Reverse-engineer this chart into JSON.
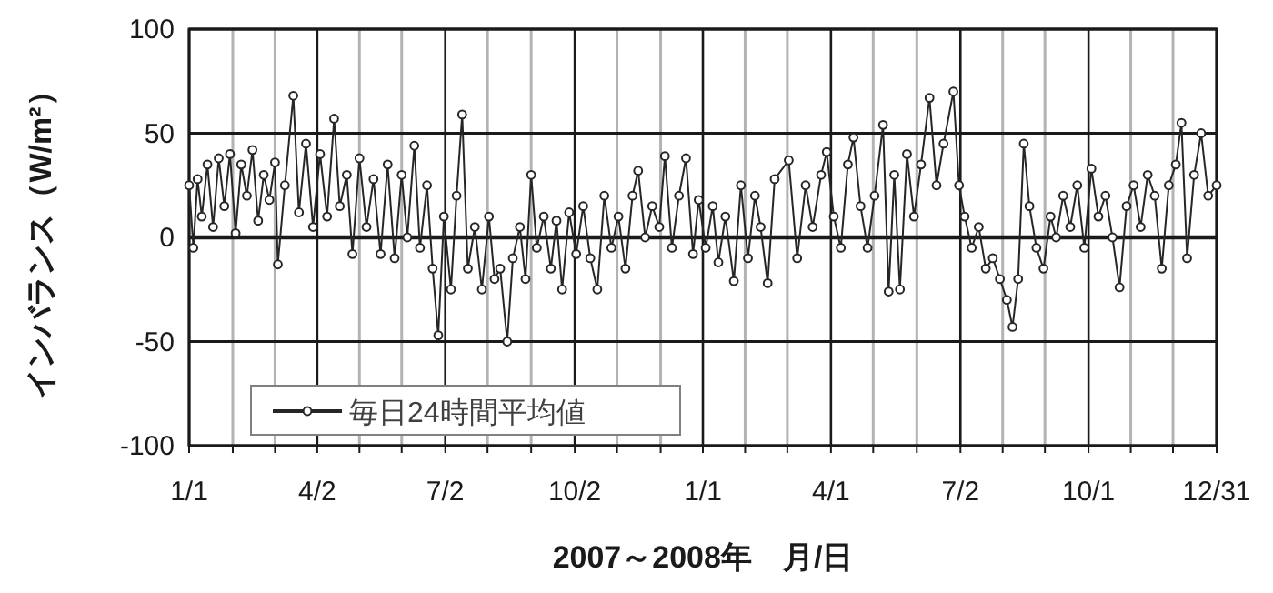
{
  "chart_data": {
    "type": "line",
    "xlabel": "2007～2008年　月/日",
    "ylabel": "インバランス（W/m²）",
    "xlim": [
      "2007-01-01",
      "2008-12-31"
    ],
    "ylim": [
      -100,
      100
    ],
    "yticks": [
      -100,
      -50,
      0,
      50,
      100
    ],
    "xticks": [
      {
        "value": "2007-01-01",
        "label": "1/1"
      },
      {
        "value": "2007-02-01",
        "label": null
      },
      {
        "value": "2007-03-03",
        "label": null
      },
      {
        "value": "2007-04-02",
        "label": "4/2"
      },
      {
        "value": "2007-05-02",
        "label": null
      },
      {
        "value": "2007-06-01",
        "label": null
      },
      {
        "value": "2007-07-02",
        "label": "7/2"
      },
      {
        "value": "2007-08-01",
        "label": null
      },
      {
        "value": "2007-09-01",
        "label": null
      },
      {
        "value": "2007-10-02",
        "label": "10/2"
      },
      {
        "value": "2007-11-01",
        "label": null
      },
      {
        "value": "2007-12-02",
        "label": null
      },
      {
        "value": "2008-01-01",
        "label": "1/1"
      },
      {
        "value": "2008-01-31",
        "label": null
      },
      {
        "value": "2008-03-01",
        "label": null
      },
      {
        "value": "2008-04-01",
        "label": "4/1"
      },
      {
        "value": "2008-05-01",
        "label": null
      },
      {
        "value": "2008-06-01",
        "label": null
      },
      {
        "value": "2008-07-02",
        "label": "7/2"
      },
      {
        "value": "2008-08-01",
        "label": null
      },
      {
        "value": "2008-08-31",
        "label": null
      },
      {
        "value": "2008-10-01",
        "label": "10/1"
      },
      {
        "value": "2008-10-31",
        "label": null
      },
      {
        "value": "2008-11-30",
        "label": null
      },
      {
        "value": "2008-12-31",
        "label": "12/31"
      }
    ],
    "grid": true,
    "legend": "bottom left",
    "marker": "circle",
    "line_style": "solid",
    "series": [
      {
        "name": "毎日24時間平均値",
        "color": "#262626",
        "x": [
          "2007-01-01",
          "2007-01-04",
          "2007-01-07",
          "2007-01-10",
          "2007-01-14",
          "2007-01-18",
          "2007-01-22",
          "2007-01-26",
          "2007-01-30",
          "2007-02-03",
          "2007-02-07",
          "2007-02-11",
          "2007-02-15",
          "2007-02-19",
          "2007-02-23",
          "2007-02-27",
          "2007-03-03",
          "2007-03-05",
          "2007-03-10",
          "2007-03-16",
          "2007-03-20",
          "2007-03-25",
          "2007-03-30",
          "2007-04-04",
          "2007-04-09",
          "2007-04-14",
          "2007-04-18",
          "2007-04-23",
          "2007-04-27",
          "2007-05-02",
          "2007-05-07",
          "2007-05-12",
          "2007-05-17",
          "2007-05-22",
          "2007-05-27",
          "2007-06-01",
          "2007-06-05",
          "2007-06-10",
          "2007-06-14",
          "2007-06-19",
          "2007-06-23",
          "2007-06-27",
          "2007-07-01",
          "2007-07-06",
          "2007-07-10",
          "2007-07-14",
          "2007-07-18",
          "2007-07-23",
          "2007-07-28",
          "2007-08-02",
          "2007-08-06",
          "2007-08-10",
          "2007-08-15",
          "2007-08-19",
          "2007-08-24",
          "2007-08-28",
          "2007-09-01",
          "2007-09-05",
          "2007-09-10",
          "2007-09-15",
          "2007-09-19",
          "2007-09-23",
          "2007-09-28",
          "2007-10-03",
          "2007-10-08",
          "2007-10-13",
          "2007-10-18",
          "2007-10-23",
          "2007-10-28",
          "2007-11-02",
          "2007-11-07",
          "2007-11-12",
          "2007-11-16",
          "2007-11-21",
          "2007-11-26",
          "2007-12-01",
          "2007-12-05",
          "2007-12-10",
          "2007-12-15",
          "2007-12-20",
          "2007-12-25",
          "2007-12-29",
          "2008-01-03",
          "2008-01-08",
          "2008-01-12",
          "2008-01-17",
          "2008-01-23",
          "2008-01-28",
          "2008-02-02",
          "2008-02-07",
          "2008-02-11",
          "2008-02-16",
          "2008-02-21",
          "2008-03-02",
          "2008-03-08",
          "2008-03-14",
          "2008-03-19",
          "2008-03-25",
          "2008-03-29",
          "2008-04-03",
          "2008-04-08",
          "2008-04-13",
          "2008-04-17",
          "2008-04-22",
          "2008-04-27",
          "2008-05-02",
          "2008-05-08",
          "2008-05-12",
          "2008-05-16",
          "2008-05-20",
          "2008-05-25",
          "2008-05-30",
          "2008-06-04",
          "2008-06-10",
          "2008-06-15",
          "2008-06-20",
          "2008-06-27",
          "2008-07-01",
          "2008-07-05",
          "2008-07-10",
          "2008-07-15",
          "2008-07-20",
          "2008-07-25",
          "2008-07-30",
          "2008-08-04",
          "2008-08-08",
          "2008-08-12",
          "2008-08-16",
          "2008-08-20",
          "2008-08-25",
          "2008-08-30",
          "2008-09-04",
          "2008-09-08",
          "2008-09-13",
          "2008-09-18",
          "2008-09-23",
          "2008-09-28",
          "2008-10-03",
          "2008-10-08",
          "2008-10-13",
          "2008-10-18",
          "2008-10-23",
          "2008-10-28",
          "2008-11-02",
          "2008-11-07",
          "2008-11-12",
          "2008-11-17",
          "2008-11-22",
          "2008-11-27",
          "2008-12-02",
          "2008-12-06",
          "2008-12-10",
          "2008-12-15",
          "2008-12-20",
          "2008-12-25",
          "2008-12-31"
        ],
        "values": [
          25,
          -5,
          28,
          10,
          35,
          5,
          38,
          15,
          40,
          2,
          35,
          20,
          42,
          8,
          30,
          18,
          36,
          -13,
          25,
          68,
          12,
          45,
          5,
          40,
          10,
          57,
          15,
          30,
          -8,
          38,
          5,
          28,
          -8,
          35,
          -10,
          30,
          0,
          44,
          -5,
          25,
          -15,
          -47,
          10,
          -25,
          20,
          59,
          -15,
          5,
          -25,
          10,
          -20,
          -15,
          -50,
          -10,
          5,
          -20,
          30,
          -5,
          10,
          -15,
          8,
          -25,
          12,
          -8,
          15,
          -10,
          -25,
          20,
          -5,
          10,
          -15,
          20,
          32,
          0,
          15,
          5,
          39,
          -5,
          20,
          38,
          -8,
          18,
          -5,
          15,
          -12,
          10,
          -21,
          25,
          -10,
          20,
          5,
          -22,
          28,
          37,
          -10,
          25,
          5,
          30,
          41,
          10,
          -5,
          35,
          48,
          15,
          -5,
          20,
          54,
          -26,
          30,
          -25,
          40,
          10,
          35,
          67,
          25,
          45,
          70,
          25,
          10,
          -5,
          5,
          -15,
          -10,
          -20,
          -30,
          -43,
          -20,
          45,
          15,
          -5,
          -15,
          10,
          0,
          20,
          5,
          25,
          -5,
          33,
          10,
          20,
          0,
          -24,
          15,
          25,
          5,
          30,
          20,
          -15,
          25,
          35,
          55,
          -10,
          30,
          50,
          20,
          25
        ]
      }
    ]
  }
}
